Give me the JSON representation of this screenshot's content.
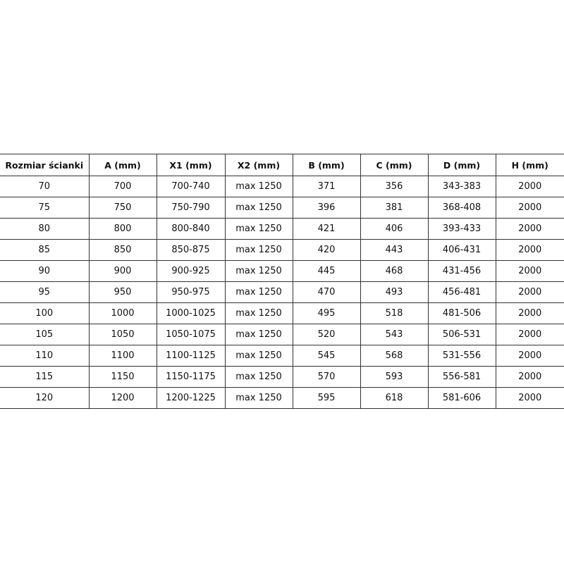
{
  "table": {
    "headers": [
      "Rozmiar ścianki",
      "A (mm)",
      "X1 (mm)",
      "X2 (mm)",
      "B (mm)",
      "C (mm)",
      "D (mm)",
      "H (mm)"
    ],
    "rows": [
      [
        "70",
        "700",
        "700-740",
        "max 1250",
        "371",
        "356",
        "343-383",
        "2000"
      ],
      [
        "75",
        "750",
        "750-790",
        "max 1250",
        "396",
        "381",
        "368-408",
        "2000"
      ],
      [
        "80",
        "800",
        "800-840",
        "max 1250",
        "421",
        "406",
        "393-433",
        "2000"
      ],
      [
        "85",
        "850",
        "850-875",
        "max 1250",
        "420",
        "443",
        "406-431",
        "2000"
      ],
      [
        "90",
        "900",
        "900-925",
        "max 1250",
        "445",
        "468",
        "431-456",
        "2000"
      ],
      [
        "95",
        "950",
        "950-975",
        "max 1250",
        "470",
        "493",
        "456-481",
        "2000"
      ],
      [
        "100",
        "1000",
        "1000-1025",
        "max 1250",
        "495",
        "518",
        "481-506",
        "2000"
      ],
      [
        "105",
        "1050",
        "1050-1075",
        "max 1250",
        "520",
        "543",
        "506-531",
        "2000"
      ],
      [
        "110",
        "1100",
        "1100-1125",
        "max 1250",
        "545",
        "568",
        "531-556",
        "2000"
      ],
      [
        "115",
        "1150",
        "1150-1175",
        "max 1250",
        "570",
        "593",
        "556-581",
        "2000"
      ],
      [
        "120",
        "1200",
        "1200-1225",
        "max 1250",
        "595",
        "618",
        "581-606",
        "2000"
      ]
    ]
  }
}
